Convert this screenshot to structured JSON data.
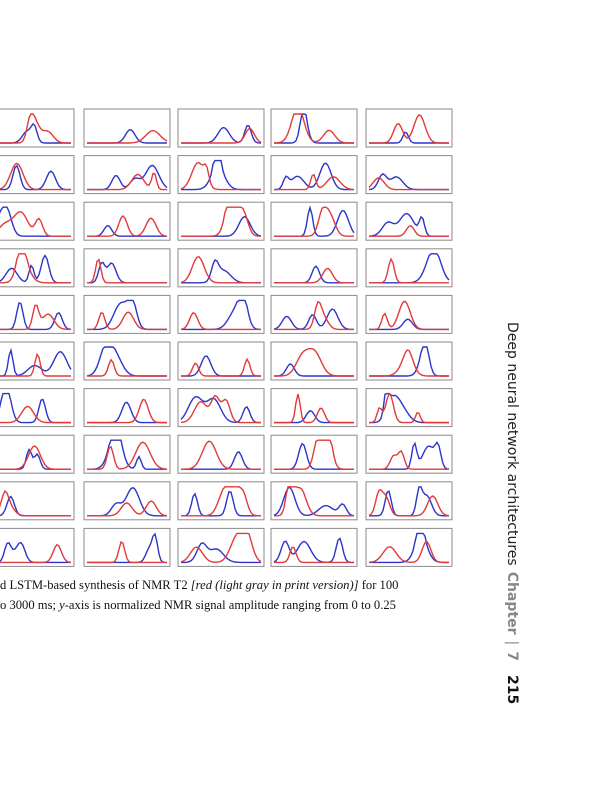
{
  "figure": {
    "rows": 10,
    "cols": 5,
    "colors": {
      "measured": "#2b35c8",
      "synthesized": "#e23a3a",
      "frame": "#8a8a8a"
    }
  },
  "caption": {
    "line1_a": "d LSTM-based synthesis of NMR T2 ",
    "line1_em": "[red (light gray in print version)]",
    "line1_b": " for 100",
    "line2_a": "o 3000 ms; ",
    "line2_em": "y",
    "line2_b": "-axis is normalized NMR signal amplitude ranging from 0 to 0.25"
  },
  "running_head": {
    "section": "Deep neural network architectures",
    "chapter_label": "Chapter",
    "separator": "|",
    "chapter_number": "7",
    "page_number": "215"
  }
}
